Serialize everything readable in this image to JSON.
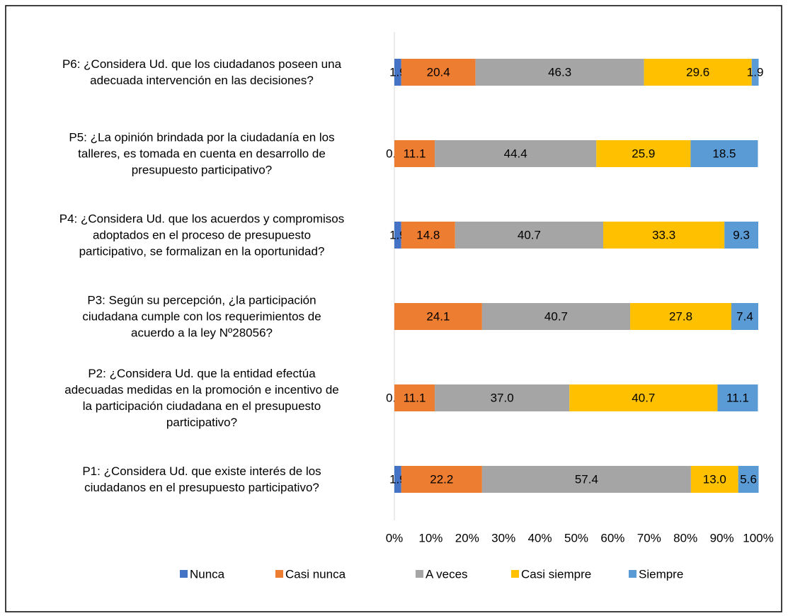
{
  "chart_data": {
    "type": "stacked_bar_horizontal",
    "categories": [
      "P1: ¿Considera Ud. que existe interés de los\nciudadanos en el presupuesto participativo?",
      "P2: ¿Considera Ud. que la entidad efectúa\nadecuadas medidas en la promoción e incentivo de\nla participación ciudadana en el presupuesto\nparticipativo?",
      "P3: Según su percepción, ¿la participación\nciudadana cumple con los requerimientos de\nacuerdo a la ley Nº28056?",
      "P4: ¿Considera Ud. que los acuerdos y compromisos\nadoptados en el proceso de presupuesto\nparticipativo, se formalizan en la oportunidad?",
      "P5: ¿La opinión brindada por la ciudadanía en los\ntalleres, es tomada en cuenta en desarrollo de\npresupuesto participativo?",
      "P6: ¿Considera Ud. que los ciudadanos poseen una\nadecuada intervención en las decisiones?"
    ],
    "series": [
      {
        "name": "Nunca",
        "color": "#4472c4",
        "values": [
          1.9,
          0,
          null,
          1.9,
          0,
          1.9
        ],
        "value_labels": [
          "1.9",
          "0.0",
          null,
          "1.9",
          "0.0",
          "1.9"
        ]
      },
      {
        "name": "Casi nunca",
        "color": "#ed7d31",
        "values": [
          22.2,
          11.1,
          24.1,
          14.8,
          11.1,
          20.4
        ]
      },
      {
        "name": "A veces",
        "color": "#a5a5a5",
        "values": [
          57.4,
          37,
          40.7,
          40.7,
          44.4,
          46.3
        ],
        "value_labels": [
          "57.4",
          "37.0",
          "40.7",
          "40.7",
          "44.4",
          "46.3"
        ]
      },
      {
        "name": "Casi siempre",
        "color": "#ffc000",
        "values": [
          13,
          40.7,
          27.8,
          33.3,
          25.9,
          29.6
        ],
        "value_labels": [
          "13.0",
          "40.7",
          "27.8",
          "33.3",
          "25.9",
          "29.6"
        ]
      },
      {
        "name": "Siempre",
        "color": "#5b9bd5",
        "values": [
          5.6,
          11.1,
          7.4,
          9.3,
          18.5,
          1.9
        ]
      }
    ],
    "xlim": [
      0,
      100
    ],
    "xticks": [
      {
        "value": 0,
        "label": "0%"
      },
      {
        "value": 10,
        "label": "10%"
      },
      {
        "value": 20,
        "label": "20%"
      },
      {
        "value": 30,
        "label": "30%"
      },
      {
        "value": 40,
        "label": "40%"
      },
      {
        "value": 50,
        "label": "50%"
      },
      {
        "value": 60,
        "label": "60%"
      },
      {
        "value": 70,
        "label": "70%"
      },
      {
        "value": 80,
        "label": "80%"
      },
      {
        "value": 90,
        "label": "90%"
      },
      {
        "value": 100,
        "label": "100%"
      }
    ],
    "legend": "bottom"
  }
}
